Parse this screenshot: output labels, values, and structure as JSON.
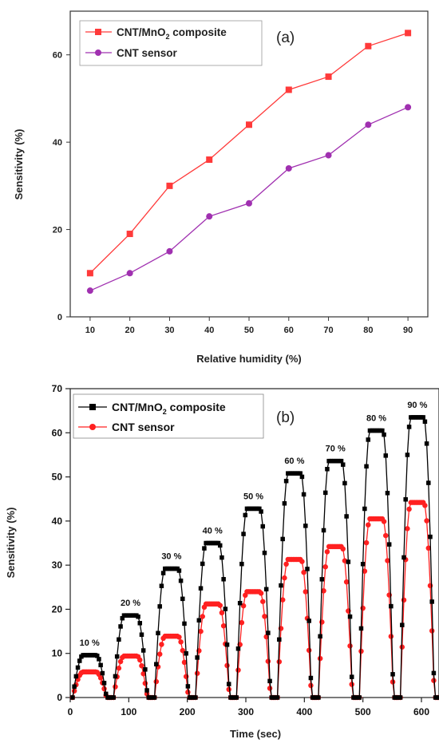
{
  "chart_data": [
    {
      "type": "line",
      "panel_label": "(a)",
      "xlabel": "Relative humidity (%)",
      "ylabel": "Sensitivity (%)",
      "xlim": [
        5,
        95
      ],
      "ylim": [
        0,
        70
      ],
      "xticks": [
        10,
        20,
        30,
        40,
        50,
        60,
        70,
        80,
        90
      ],
      "yticks": [
        0,
        20,
        40,
        60
      ],
      "x": [
        10,
        20,
        30,
        40,
        50,
        60,
        70,
        80,
        90
      ],
      "legend_position": "top-left",
      "series": [
        {
          "name": "CNT/MnO₂ composite",
          "name_base": "CNT/MnO",
          "name_sub": "2",
          "name_tail": " composite",
          "color": "#ff3a3a",
          "marker": "square",
          "values": [
            10,
            19,
            30,
            36,
            44,
            52,
            55,
            62,
            65
          ]
        },
        {
          "name": "CNT sensor",
          "name_base": "CNT sensor",
          "name_sub": "",
          "name_tail": "",
          "color": "#a030b0",
          "marker": "circle",
          "values": [
            6,
            10,
            15,
            23,
            26,
            34,
            37,
            44,
            48
          ]
        }
      ]
    },
    {
      "type": "line",
      "panel_label": "(b)",
      "xlabel": "Time (sec)",
      "ylabel": "Sensitivity (%)",
      "xlim": [
        0,
        630
      ],
      "ylim": [
        0,
        70
      ],
      "xticks": [
        0,
        100,
        200,
        300,
        400,
        500,
        600
      ],
      "yticks": [
        0,
        10,
        20,
        30,
        40,
        50,
        60,
        70
      ],
      "legend_position": "top-left",
      "cycles": [
        {
          "start": 0,
          "label": "10 %",
          "composite_peak": 9.6,
          "cnt_peak": 5.8
        },
        {
          "start": 70,
          "label": "20 %",
          "composite_peak": 18.6,
          "cnt_peak": 9.4
        },
        {
          "start": 140,
          "label": "30 %",
          "composite_peak": 29.2,
          "cnt_peak": 13.9
        },
        {
          "start": 210,
          "label": "40 %",
          "composite_peak": 35.0,
          "cnt_peak": 21.2
        },
        {
          "start": 280,
          "label": "50 %",
          "composite_peak": 42.8,
          "cnt_peak": 24.0
        },
        {
          "start": 350,
          "label": "60 %",
          "composite_peak": 50.8,
          "cnt_peak": 31.3
        },
        {
          "start": 420,
          "label": "70 %",
          "composite_peak": 53.6,
          "cnt_peak": 34.2
        },
        {
          "start": 490,
          "label": "80 %",
          "composite_peak": 60.5,
          "cnt_peak": 40.5
        },
        {
          "start": 560,
          "label": "90 %",
          "composite_peak": 63.5,
          "cnt_peak": 44.2
        }
      ],
      "series": [
        {
          "name": "CNT/MnO₂ composite",
          "name_base": "CNT/MnO",
          "name_sub": "2",
          "name_tail": " composite",
          "color": "#000000",
          "marker": "square"
        },
        {
          "name": "CNT sensor",
          "name_base": "CNT sensor",
          "name_sub": "",
          "name_tail": "",
          "color": "#ff2020",
          "marker": "circle"
        }
      ]
    }
  ]
}
